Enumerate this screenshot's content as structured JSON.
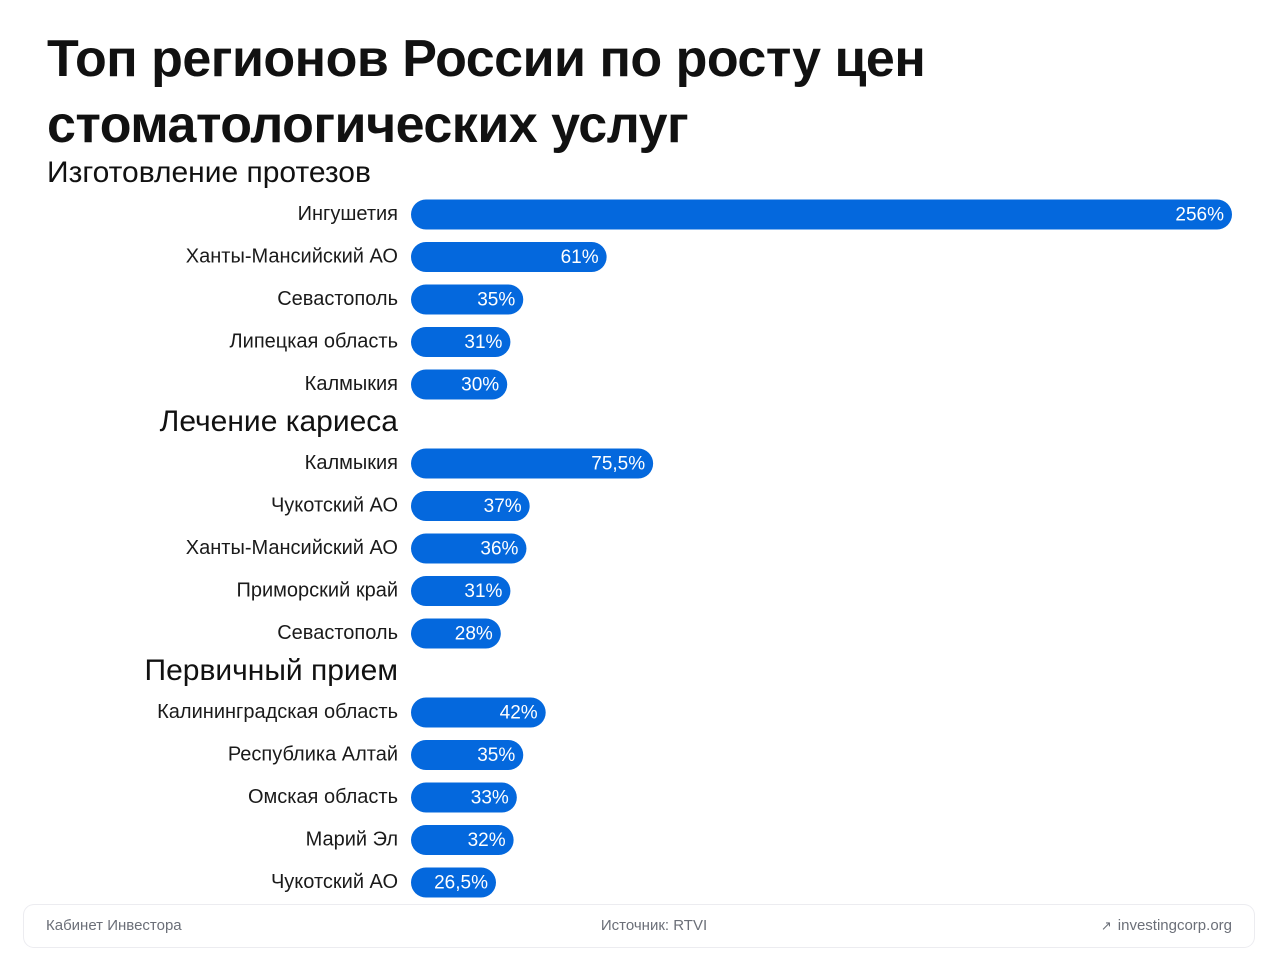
{
  "title": "Топ регионов России по росту цен стоматологических услуг",
  "colors": {
    "bar": "#0468DD",
    "text": "#111111",
    "footer_text": "#6b6f78"
  },
  "footer": {
    "left": "Кабинет Инвестора",
    "center": "Источник: RTVI",
    "right": "investingcorp.org",
    "right_icon": "arrow-up-right-icon"
  },
  "chart_data": {
    "type": "bar",
    "orientation": "horizontal",
    "title": "Топ регионов России по росту цен стоматологических услуг",
    "xlim": [
      0,
      256
    ],
    "grid": false,
    "groups": [
      {
        "name": "Изготовление протезов",
        "categories": [
          "Ингушетия",
          "Ханты-Мансийский АО",
          "Севастополь",
          "Липецкая область",
          "Калмыкия"
        ],
        "values": [
          256,
          61,
          35,
          31,
          30
        ],
        "labels": [
          "256%",
          "61%",
          "35%",
          "31%",
          "30%"
        ]
      },
      {
        "name": "Лечение кариеса",
        "categories": [
          "Калмыкия",
          "Чукотский АО",
          "Ханты-Мансийский АО",
          "Приморский край",
          "Севастополь"
        ],
        "values": [
          75.5,
          37,
          36,
          31,
          28
        ],
        "labels": [
          "75,5%",
          "37%",
          "36%",
          "31%",
          "28%"
        ]
      },
      {
        "name": "Первичный прием",
        "categories": [
          "Калининградская область",
          "Республика Алтай",
          "Омская область",
          "Марий Эл",
          "Чукотский АО"
        ],
        "values": [
          42,
          35,
          33,
          32,
          26.5
        ],
        "labels": [
          "42%",
          "35%",
          "33%",
          "32%",
          "26,5%"
        ]
      }
    ]
  }
}
